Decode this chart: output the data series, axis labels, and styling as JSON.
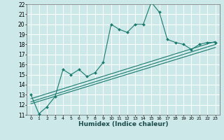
{
  "xlabel": "Humidex (Indice chaleur)",
  "bg_color": "#cce8e8",
  "grid_color": "#ffffff",
  "line_color": "#1a7a6e",
  "xlim": [
    -0.5,
    23.5
  ],
  "ylim": [
    11,
    22
  ],
  "xticks": [
    0,
    1,
    2,
    3,
    4,
    5,
    6,
    7,
    8,
    9,
    10,
    11,
    12,
    13,
    14,
    15,
    16,
    17,
    18,
    19,
    20,
    21,
    22,
    23
  ],
  "yticks": [
    11,
    12,
    13,
    14,
    15,
    16,
    17,
    18,
    19,
    20,
    21,
    22
  ],
  "main_x": [
    0,
    1,
    2,
    3,
    4,
    5,
    6,
    7,
    8,
    9,
    10,
    11,
    12,
    13,
    14,
    15,
    16,
    17,
    18,
    19,
    20,
    21,
    22,
    23
  ],
  "main_y": [
    13.0,
    11.1,
    11.8,
    12.8,
    15.5,
    15.0,
    15.5,
    14.8,
    15.2,
    16.2,
    20.0,
    19.5,
    19.2,
    20.0,
    20.0,
    22.2,
    21.2,
    18.5,
    18.2,
    18.0,
    17.5,
    18.0,
    18.2,
    18.2
  ],
  "line2_x": [
    0,
    23
  ],
  "line2_y": [
    12.6,
    18.3
  ],
  "line3_x": [
    0,
    23
  ],
  "line3_y": [
    12.3,
    18.0
  ],
  "line4_x": [
    0,
    23
  ],
  "line4_y": [
    12.1,
    17.7
  ]
}
